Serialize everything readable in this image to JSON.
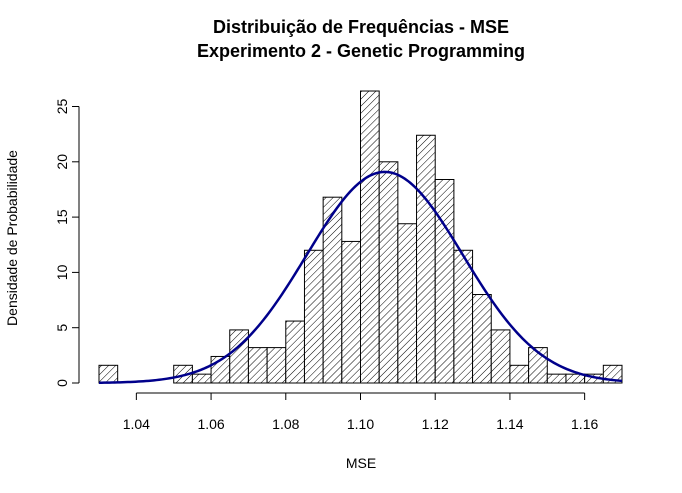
{
  "chart_data": {
    "type": "bar",
    "title": "Distribuição de Frequências - MSE",
    "subtitle": "Experimento 2 - Genetic Programming",
    "xlabel": "MSE",
    "ylabel": "Densidade de Probabilidade",
    "xlim": [
      1.03,
      1.17
    ],
    "ylim": [
      0,
      27
    ],
    "x_ticks": [
      "1.04",
      "1.06",
      "1.08",
      "1.10",
      "1.12",
      "1.14",
      "1.16"
    ],
    "x_tick_values": [
      1.04,
      1.06,
      1.08,
      1.1,
      1.12,
      1.14,
      1.16
    ],
    "y_ticks": [
      "0",
      "5",
      "10",
      "15",
      "20",
      "25"
    ],
    "y_tick_values": [
      0,
      5,
      10,
      15,
      20,
      25
    ],
    "bin_width": 0.005,
    "bins": [
      {
        "start": 1.03,
        "value": 1.6
      },
      {
        "start": 1.035,
        "value": 0
      },
      {
        "start": 1.04,
        "value": 0
      },
      {
        "start": 1.045,
        "value": 0
      },
      {
        "start": 1.05,
        "value": 1.6
      },
      {
        "start": 1.055,
        "value": 0.8
      },
      {
        "start": 1.06,
        "value": 2.4
      },
      {
        "start": 1.065,
        "value": 4.8
      },
      {
        "start": 1.07,
        "value": 3.2
      },
      {
        "start": 1.075,
        "value": 3.2
      },
      {
        "start": 1.08,
        "value": 5.6
      },
      {
        "start": 1.085,
        "value": 12.0
      },
      {
        "start": 1.09,
        "value": 16.8
      },
      {
        "start": 1.095,
        "value": 12.8
      },
      {
        "start": 1.1,
        "value": 26.4
      },
      {
        "start": 1.105,
        "value": 20.0
      },
      {
        "start": 1.11,
        "value": 14.4
      },
      {
        "start": 1.115,
        "value": 22.4
      },
      {
        "start": 1.12,
        "value": 18.4
      },
      {
        "start": 1.125,
        "value": 12.0
      },
      {
        "start": 1.13,
        "value": 8.0
      },
      {
        "start": 1.135,
        "value": 4.8
      },
      {
        "start": 1.14,
        "value": 1.6
      },
      {
        "start": 1.145,
        "value": 3.2
      },
      {
        "start": 1.15,
        "value": 0.8
      },
      {
        "start": 1.155,
        "value": 0.8
      },
      {
        "start": 1.16,
        "value": 0.8
      },
      {
        "start": 1.165,
        "value": 1.6
      }
    ],
    "bar_fill": "hatched",
    "density_curve": {
      "type": "normal",
      "mean": 1.1065,
      "sd": 0.0209,
      "color": "#00008b"
    },
    "grid": false,
    "legend": "none"
  }
}
